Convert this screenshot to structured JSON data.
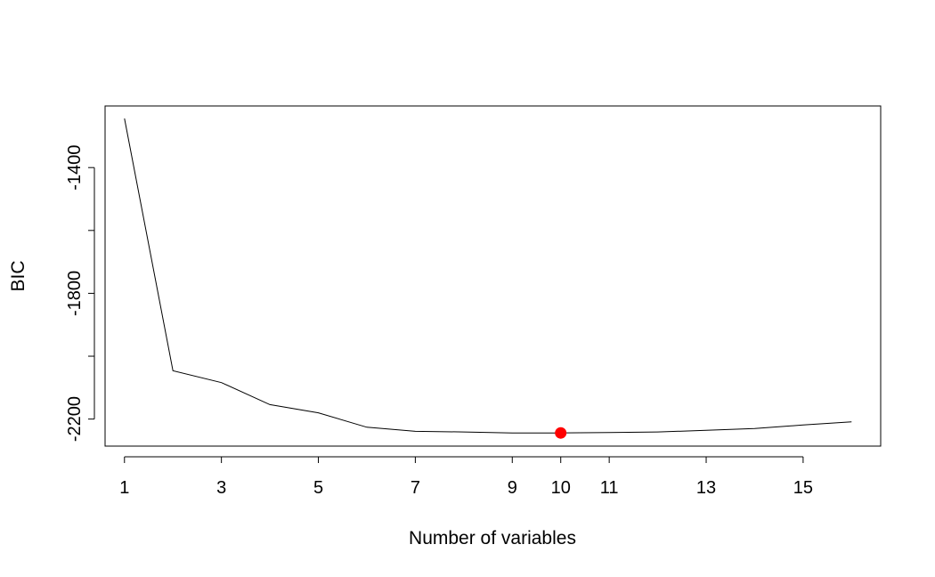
{
  "chart_data": {
    "type": "line",
    "title": "",
    "xlabel": "Number of variables",
    "ylabel": "BIC",
    "xlim": [
      0.6,
      16.6
    ],
    "ylim": [
      -2286,
      -1204
    ],
    "x": [
      1,
      2,
      3,
      4,
      5,
      6,
      7,
      8,
      9,
      10,
      11,
      12,
      13,
      14,
      15,
      16
    ],
    "y": [
      -1244,
      -2046,
      -2084,
      -2154,
      -2180,
      -2226,
      -2239,
      -2241,
      -2244,
      -2244,
      -2243,
      -2241,
      -2236,
      -2230,
      -2219,
      -2209
    ],
    "highlight": {
      "x": 10,
      "y": -2244,
      "color": "#ff0000"
    },
    "line_color": "#000000",
    "x_tick_labels": [
      "1",
      "3",
      "5",
      "7",
      "9",
      "10",
      "11",
      "13",
      "15"
    ],
    "x_tick_values": [
      1,
      3,
      5,
      7,
      9,
      10,
      11,
      13,
      15
    ],
    "y_tick_labels": [
      "-1400",
      "-1800",
      "-2200"
    ],
    "y_tick_values": [
      -1400,
      -1800,
      -2200
    ],
    "y_minor_ticks": [
      -1600,
      -2000
    ],
    "grid": false,
    "legend": "none"
  }
}
